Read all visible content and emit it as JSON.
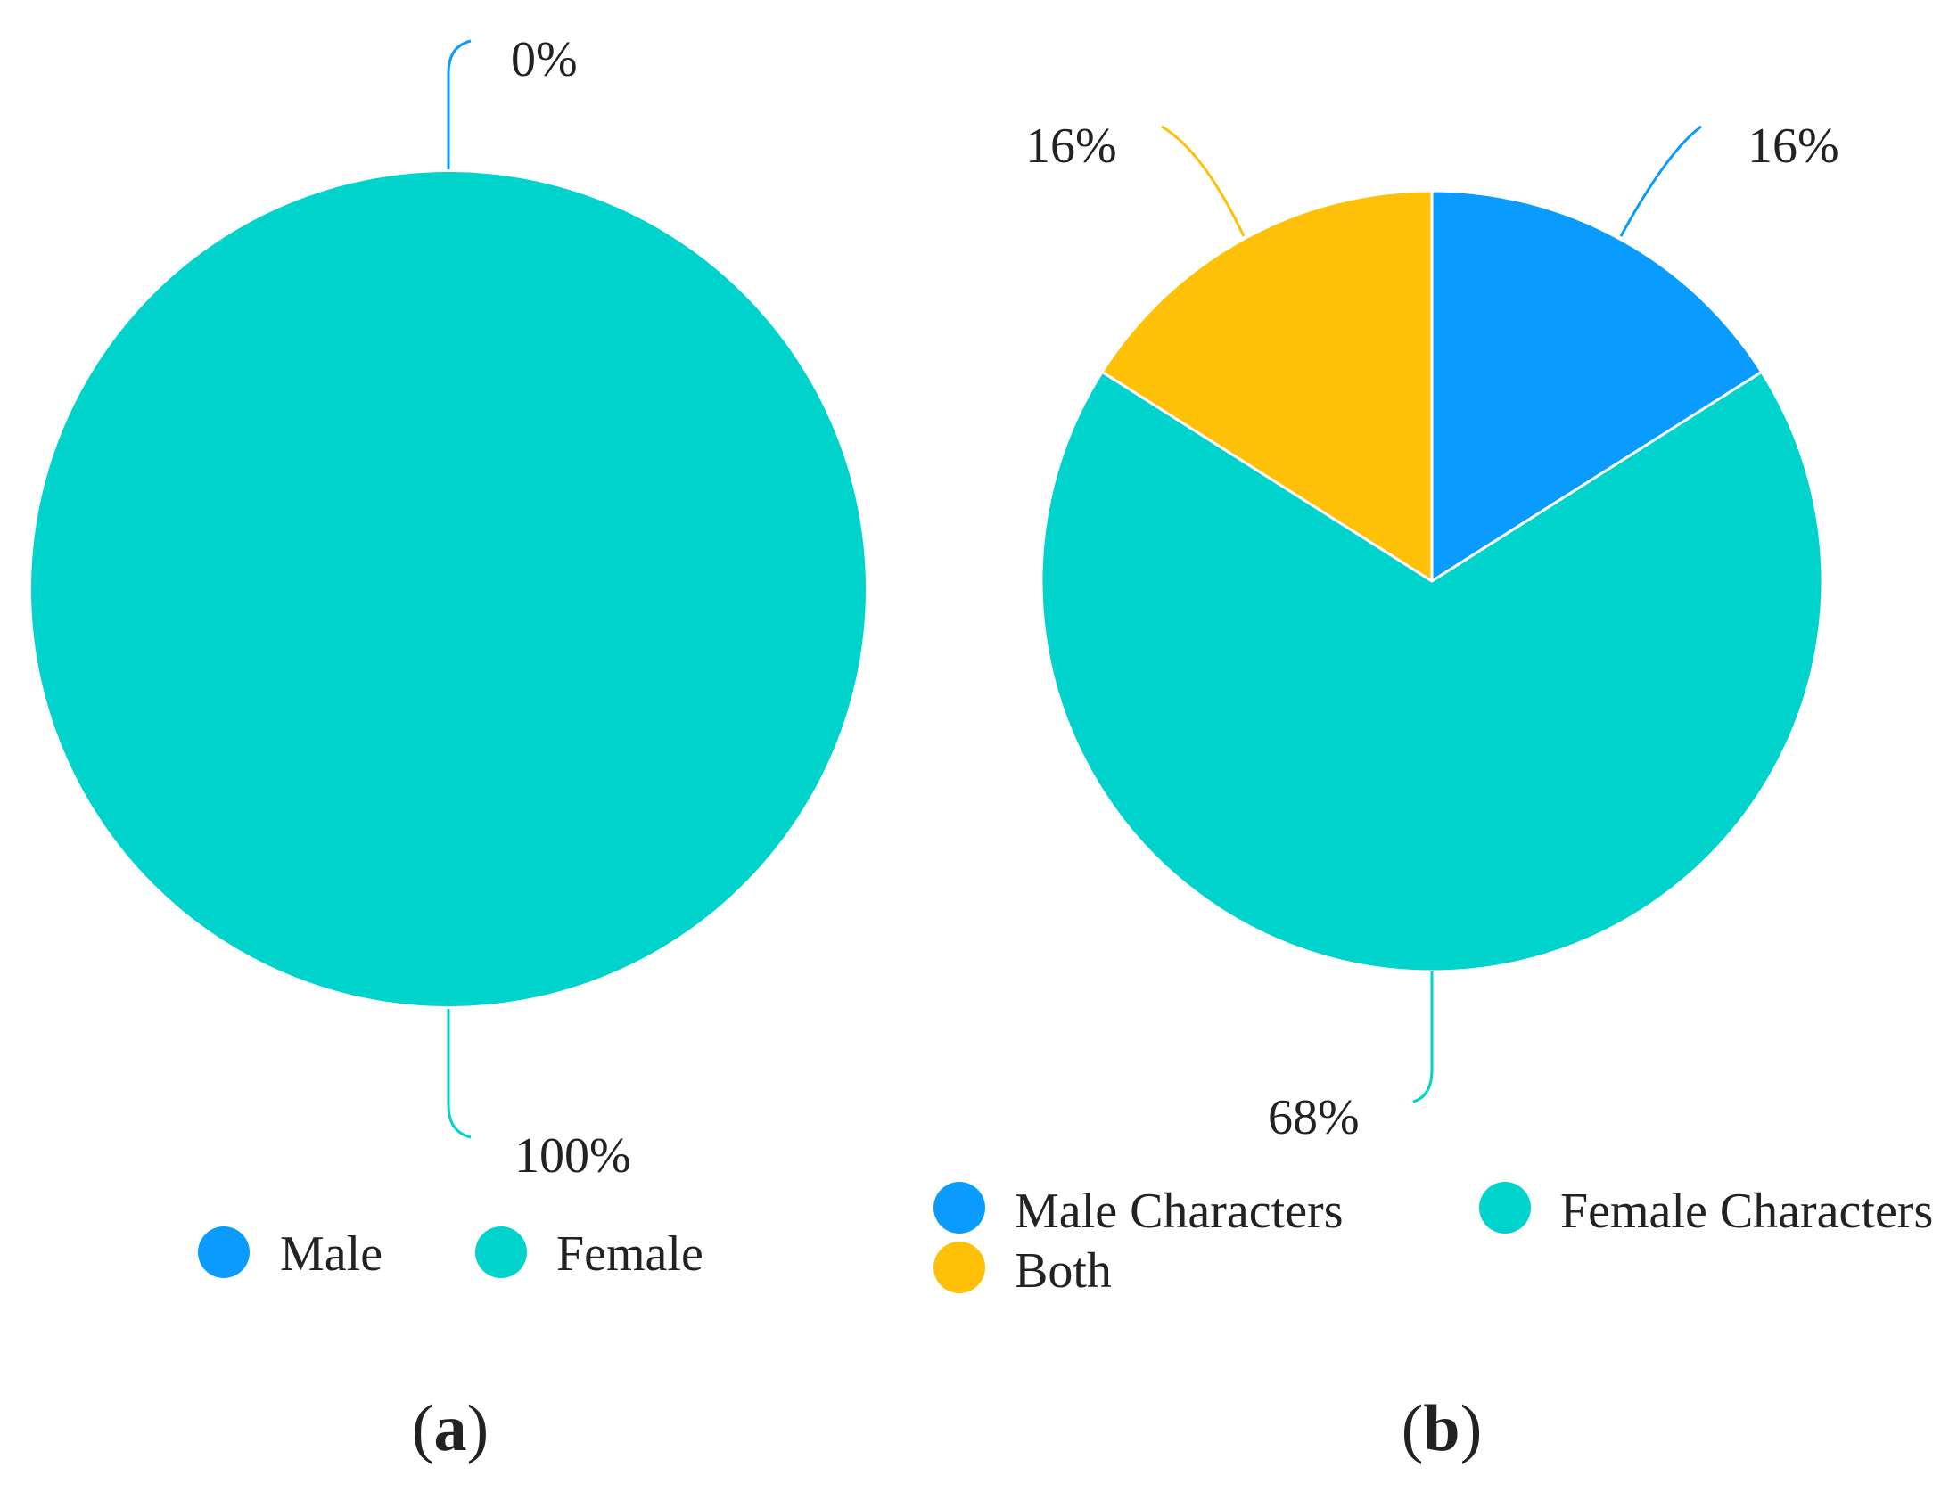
{
  "chart_data": [
    {
      "type": "pie",
      "caption": "a",
      "series": [
        {
          "name": "Male",
          "value": 0,
          "label": "0%",
          "color": "#0a9bff"
        },
        {
          "name": "Female",
          "value": 100,
          "label": "100%",
          "color": "#00d3cb"
        }
      ],
      "legend": [
        "Male",
        "Female"
      ],
      "legend_position": "bottom"
    },
    {
      "type": "pie",
      "caption": "b",
      "series": [
        {
          "name": "Male Characters",
          "value": 16,
          "label": "16%",
          "color": "#0a9bff"
        },
        {
          "name": "Female Characters",
          "value": 68,
          "label": "68%",
          "color": "#00d3cb"
        },
        {
          "name": "Both",
          "value": 16,
          "label": "16%",
          "color": "#ffc107"
        }
      ],
      "legend": [
        "Male Characters",
        "Female Characters",
        "Both"
      ],
      "legend_position": "bottom"
    }
  ]
}
